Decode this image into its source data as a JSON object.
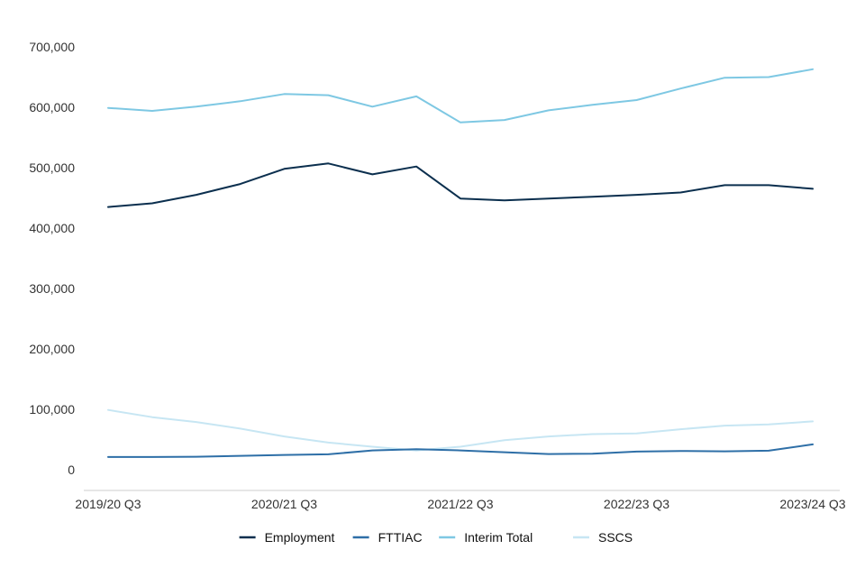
{
  "chart_data": {
    "type": "line",
    "title": "",
    "xlabel": "",
    "ylabel": "",
    "ylim": [
      0,
      700000
    ],
    "yticks": [
      0,
      100000,
      200000,
      300000,
      400000,
      500000,
      600000,
      700000
    ],
    "ytick_labels": [
      "0",
      "100,000",
      "200,000",
      "300,000",
      "400,000",
      "500,000",
      "600,000",
      "700,000"
    ],
    "categories": [
      "2019/20 Q3",
      "2019/20 Q4",
      "2020/21 Q1",
      "2020/21 Q2",
      "2020/21 Q3",
      "2020/21 Q4",
      "2021/22 Q1",
      "2021/22 Q2",
      "2021/22 Q3",
      "2021/22 Q4",
      "2022/23 Q1",
      "2022/23 Q2",
      "2022/23 Q3",
      "2022/23 Q4",
      "2023/24 Q1",
      "2023/24 Q2",
      "2023/24 Q3"
    ],
    "xtick_labels": [
      "2019/20 Q3",
      "2020/21 Q3",
      "2021/22 Q3",
      "2022/23 Q3",
      "2023/24 Q3"
    ],
    "grid": false,
    "legend_position": "bottom",
    "series": [
      {
        "name": "Employment",
        "color": "#0b2f4e",
        "values": [
          435000,
          441000,
          455000,
          473000,
          498000,
          507000,
          489000,
          502000,
          449000,
          446000,
          449000,
          452000,
          455000,
          459000,
          471000,
          471000,
          465000
        ]
      },
      {
        "name": "FTTIAC",
        "color": "#2e6fa7",
        "values": [
          21000,
          21000,
          21500,
          23000,
          24500,
          25500,
          32000,
          34000,
          32000,
          29000,
          26000,
          26500,
          30000,
          31000,
          30500,
          31500,
          42000
        ]
      },
      {
        "name": "Interim Total",
        "color": "#7ec8e3",
        "values": [
          599000,
          594000,
          601000,
          610000,
          622000,
          620000,
          601000,
          618000,
          575000,
          579000,
          595000,
          604000,
          612000,
          631000,
          649000,
          650000,
          663000
        ]
      },
      {
        "name": "SSCS",
        "color": "#c7e6f3",
        "values": [
          99000,
          87000,
          79000,
          68000,
          55000,
          45000,
          38000,
          32000,
          38000,
          49000,
          55000,
          59000,
          60000,
          67000,
          73000,
          75000,
          80000
        ]
      }
    ]
  }
}
